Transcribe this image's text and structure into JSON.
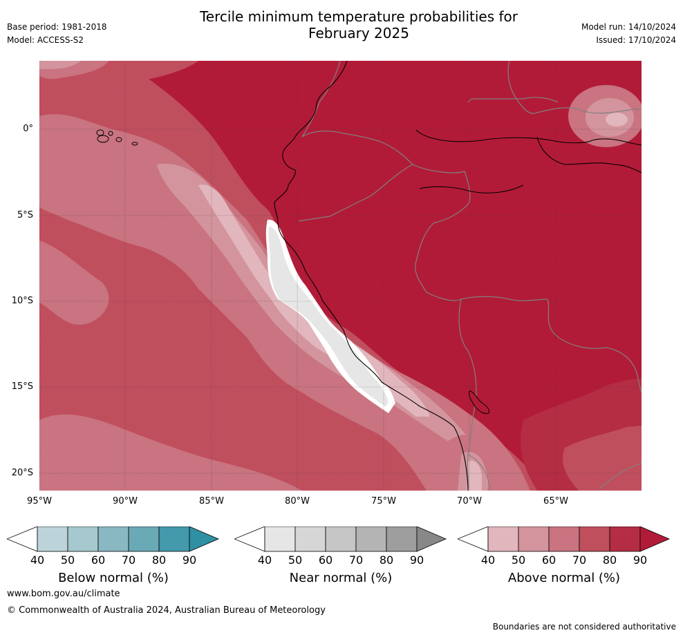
{
  "header": {
    "title_line1": "Tercile minimum temperature probabilities for",
    "title_line2": "February 2025",
    "base_period": "Base period: 1981-2018",
    "model": "Model: ACCESS-S2",
    "model_run": "Model run: 14/10/2024",
    "issued": "Issued: 17/10/2024"
  },
  "axes": {
    "lat_labels": [
      "0°",
      "5°S",
      "10°S",
      "15°S",
      "20°S"
    ],
    "lon_labels": [
      "95°W",
      "90°W",
      "85°W",
      "80°W",
      "75°W",
      "70°W",
      "65°W"
    ]
  },
  "colorbars": [
    {
      "label": "Below normal (%)",
      "ticks": [
        "40",
        "50",
        "60",
        "70",
        "80",
        "90"
      ],
      "colors": [
        "#ffffff",
        "#bcd4d9",
        "#a6c8cf",
        "#89b8c3",
        "#6aa9b6",
        "#4499ab",
        "#2f8fa3"
      ]
    },
    {
      "label": "Near normal (%)",
      "ticks": [
        "40",
        "50",
        "60",
        "70",
        "80",
        "90"
      ],
      "colors": [
        "#ffffff",
        "#e6e6e6",
        "#d6d6d6",
        "#c6c6c6",
        "#b4b4b4",
        "#9e9e9e",
        "#888888"
      ]
    },
    {
      "label": "Above normal (%)",
      "ticks": [
        "40",
        "50",
        "60",
        "70",
        "80",
        "90"
      ],
      "colors": [
        "#ffffff",
        "#e2b6bd",
        "#d3949d",
        "#c97480",
        "#c04f5e",
        "#b42d43",
        "#b21b38"
      ]
    }
  ],
  "footer": {
    "website": "www.bom.gov.au/climate",
    "copyright": "© Commonwealth of Australia 2024, Australian Bureau of Meteorology",
    "disclaimer": "Boundaries are not considered authoritative"
  },
  "map_colors": {
    "above_90": "#b21b38",
    "above_80": "#b42d43",
    "above_70": "#c04f5e",
    "above_60": "#c97480",
    "above_50": "#d3949d",
    "above_40": "#e2b6bd",
    "near_50": "#e6e6e6",
    "coast": "#000000",
    "borders": "#808080"
  }
}
